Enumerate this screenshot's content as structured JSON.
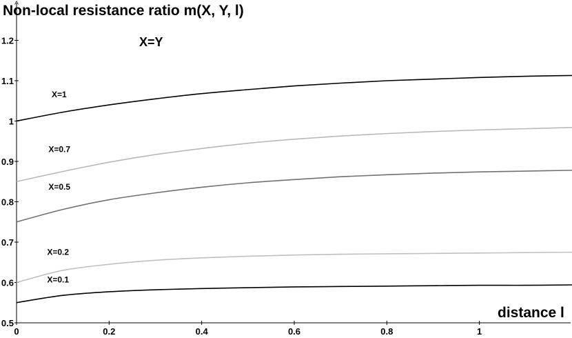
{
  "chart_data": {
    "type": "line",
    "ylabel": "Non-local resistance ratio m(X, Y, l)",
    "xlabel": "distance l",
    "annotation": "X=Y",
    "xlim": [
      0,
      1.2
    ],
    "ylim": [
      0.5,
      1.3
    ],
    "x_ticks": [
      "0",
      "0.2",
      "0.4",
      "0.6",
      "0.8",
      "1"
    ],
    "y_ticks": [
      "0.5",
      "0.6",
      "0.7",
      "0.8",
      "0.9",
      "1",
      "1.1",
      "1.2"
    ],
    "grid": false,
    "series": [
      {
        "name": "X=1",
        "color": "#000000",
        "x": [
          0,
          0.1,
          0.2,
          0.3,
          0.4,
          0.5,
          0.6,
          0.7,
          0.8,
          0.9,
          1.0,
          1.1,
          1.2
        ],
        "y": [
          1.0,
          1.022,
          1.04,
          1.055,
          1.068,
          1.078,
          1.087,
          1.094,
          1.1,
          1.104,
          1.108,
          1.111,
          1.113
        ]
      },
      {
        "name": "X=0.7",
        "color": "#b8b8b8",
        "x": [
          0,
          0.1,
          0.2,
          0.3,
          0.4,
          0.5,
          0.6,
          0.7,
          0.8,
          0.9,
          1.0,
          1.1,
          1.2
        ],
        "y": [
          0.85,
          0.875,
          0.898,
          0.917,
          0.932,
          0.945,
          0.955,
          0.963,
          0.969,
          0.974,
          0.978,
          0.981,
          0.984
        ]
      },
      {
        "name": "X=0.5",
        "color": "#707070",
        "x": [
          0,
          0.1,
          0.2,
          0.3,
          0.4,
          0.5,
          0.6,
          0.7,
          0.8,
          0.9,
          1.0,
          1.1,
          1.2
        ],
        "y": [
          0.75,
          0.781,
          0.805,
          0.822,
          0.836,
          0.847,
          0.855,
          0.862,
          0.867,
          0.871,
          0.874,
          0.876,
          0.878
        ]
      },
      {
        "name": "X=0.2",
        "color": "#c0c0c0",
        "x": [
          0,
          0.1,
          0.2,
          0.3,
          0.4,
          0.5,
          0.6,
          0.7,
          0.8,
          0.9,
          1.0,
          1.1,
          1.2
        ],
        "y": [
          0.6,
          0.63,
          0.645,
          0.655,
          0.661,
          0.665,
          0.668,
          0.67,
          0.671,
          0.672,
          0.673,
          0.674,
          0.675
        ]
      },
      {
        "name": "X=0.1",
        "color": "#000000",
        "x": [
          0,
          0.1,
          0.2,
          0.3,
          0.4,
          0.5,
          0.6,
          0.7,
          0.8,
          0.9,
          1.0,
          1.1,
          1.2
        ],
        "y": [
          0.55,
          0.568,
          0.577,
          0.582,
          0.585,
          0.587,
          0.589,
          0.59,
          0.591,
          0.592,
          0.593,
          0.593,
          0.594
        ]
      }
    ]
  }
}
